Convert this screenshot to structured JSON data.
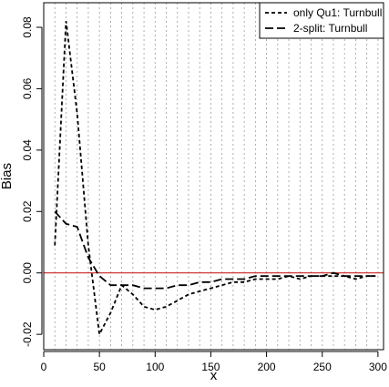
{
  "chart_data": {
    "type": "line",
    "xlabel": "x",
    "ylabel": "Bias",
    "xlim": [
      0,
      305
    ],
    "ylim": [
      -0.025,
      0.088
    ],
    "x_ticks": [
      0,
      50,
      100,
      150,
      200,
      250,
      300
    ],
    "x_tick_labels": [
      "0",
      "50",
      "100",
      "150",
      "200",
      "250",
      "300"
    ],
    "y_ticks": [
      -0.02,
      0.0,
      0.02,
      0.04,
      0.06,
      0.08
    ],
    "y_tick_labels": [
      "-0.02",
      "0.00",
      "0.02",
      "0.04",
      "0.06",
      "0.08"
    ],
    "vertical_dotted_lines_x": [
      10,
      20,
      30,
      40,
      50,
      60,
      70,
      80,
      90,
      100,
      110,
      120,
      130,
      140,
      150,
      160,
      170,
      180,
      190,
      200,
      210,
      220,
      230,
      240,
      250,
      260,
      270,
      280,
      290,
      300
    ],
    "reference_line": {
      "y": 0.0,
      "color": "#cc2222"
    },
    "legend": {
      "placement": "top-right"
    },
    "series": [
      {
        "name": "only Qu1: Turnbull",
        "color": "#000000",
        "dash": "short",
        "x": [
          10,
          20,
          30,
          40,
          50,
          60,
          70,
          80,
          90,
          100,
          110,
          120,
          130,
          140,
          150,
          160,
          170,
          180,
          190,
          200,
          210,
          220,
          230,
          240,
          250,
          260,
          270,
          280,
          290,
          300
        ],
        "y": [
          0.009,
          0.082,
          0.052,
          0.009,
          -0.02,
          -0.013,
          -0.004,
          -0.007,
          -0.011,
          -0.012,
          -0.011,
          -0.009,
          -0.007,
          -0.006,
          -0.005,
          -0.004,
          -0.003,
          -0.003,
          -0.002,
          -0.002,
          -0.002,
          -0.001,
          -0.002,
          -0.001,
          -0.001,
          -0.001,
          -0.001,
          -0.002,
          -0.001,
          -0.001
        ]
      },
      {
        "name": "2-split: Turnbull",
        "color": "#000000",
        "dash": "long",
        "x": [
          10,
          20,
          30,
          40,
          50,
          60,
          70,
          80,
          90,
          100,
          110,
          120,
          130,
          140,
          150,
          160,
          170,
          180,
          190,
          200,
          210,
          220,
          230,
          240,
          250,
          260,
          270,
          280,
          290,
          300
        ],
        "y": [
          0.02,
          0.016,
          0.015,
          0.005,
          -0.001,
          -0.004,
          -0.004,
          -0.004,
          -0.005,
          -0.005,
          -0.005,
          -0.004,
          -0.004,
          -0.003,
          -0.003,
          -0.002,
          -0.002,
          -0.002,
          -0.001,
          -0.001,
          -0.001,
          -0.001,
          -0.001,
          -0.001,
          -0.001,
          0.0,
          -0.001,
          -0.001,
          -0.001,
          -0.001
        ]
      }
    ]
  }
}
